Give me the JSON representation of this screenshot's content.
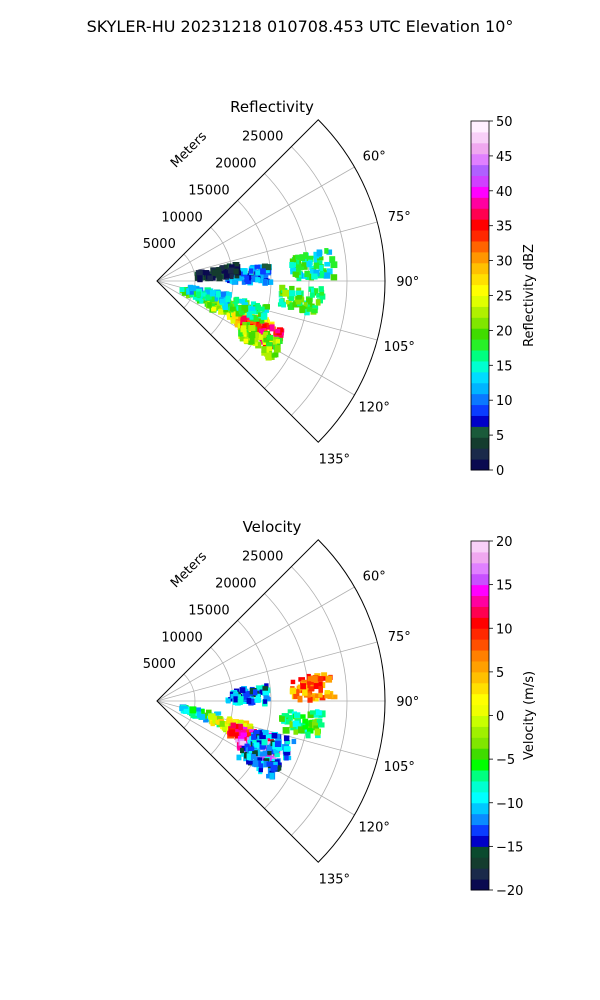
{
  "figure": {
    "suptitle": "SKYLER-HU  20231218  010708.453 UTC Elevation 10°"
  },
  "chart_data": [
    {
      "type": "polar-sector",
      "title": "Reflectivity",
      "range_label": "Meters",
      "theta_ticks": [
        "60°",
        "75°",
        "90°",
        "105°",
        "120°",
        "135°"
      ],
      "theta_values": [
        60,
        75,
        90,
        105,
        120,
        135
      ],
      "theta_range": [
        45,
        135
      ],
      "r_ticks": [
        "5000",
        "10000",
        "15000",
        "20000",
        "25000"
      ],
      "r_values": [
        5000,
        10000,
        15000,
        20000,
        25000
      ],
      "r_max": 30000,
      "grid": true,
      "colorbar": {
        "label": "Reflectivity dBZ",
        "range": [
          0,
          50
        ],
        "ticks": [
          "0",
          "5",
          "10",
          "15",
          "20",
          "25",
          "30",
          "35",
          "40",
          "45",
          "50"
        ],
        "tick_values": [
          0,
          5,
          10,
          15,
          20,
          25,
          30,
          35,
          40,
          45,
          50
        ],
        "colors": [
          "#0a0a50",
          "#1a2a4a",
          "#143c2e",
          "#1a5a3a",
          "#0000c8",
          "#0a3cff",
          "#0a78ff",
          "#00b4ff",
          "#00dcff",
          "#00ffd0",
          "#00ff80",
          "#28f028",
          "#40dc00",
          "#80e600",
          "#b0f000",
          "#e0ff00",
          "#ffff00",
          "#ffe000",
          "#ffc000",
          "#ff9600",
          "#ff6400",
          "#ff2800",
          "#ff0000",
          "#ff0050",
          "#ff00a0",
          "#ff00ff",
          "#d040ff",
          "#b060ff",
          "#e080ff",
          "#f0a8f0",
          "#f8d0f8",
          "#fff0ff"
        ]
      },
      "echoes": [
        {
          "azimuth": 110,
          "range": 6000,
          "value": 18
        },
        {
          "azimuth": 112,
          "range": 10000,
          "value": 22
        },
        {
          "azimuth": 114,
          "range": 13500,
          "value": 28
        },
        {
          "azimuth": 116,
          "range": 15000,
          "value": 35
        },
        {
          "azimuth": 120,
          "range": 15500,
          "value": 22
        },
        {
          "azimuth": 107,
          "range": 12000,
          "value": 17
        },
        {
          "azimuth": 104,
          "range": 7000,
          "value": 14
        },
        {
          "azimuth": 97,
          "range": 19000,
          "value": 18
        },
        {
          "azimuth": 84,
          "range": 20500,
          "value": 16
        },
        {
          "azimuth": 86,
          "range": 12000,
          "value": 10
        },
        {
          "azimuth": 82,
          "range": 8000,
          "value": 2
        }
      ]
    },
    {
      "type": "polar-sector",
      "title": "Velocity",
      "range_label": "Meters",
      "theta_ticks": [
        "60°",
        "75°",
        "90°",
        "105°",
        "120°",
        "135°"
      ],
      "theta_values": [
        60,
        75,
        90,
        105,
        120,
        135
      ],
      "theta_range": [
        45,
        135
      ],
      "r_ticks": [
        "5000",
        "10000",
        "15000",
        "20000",
        "25000"
      ],
      "r_values": [
        5000,
        10000,
        15000,
        20000,
        25000
      ],
      "r_max": 30000,
      "grid": true,
      "colorbar": {
        "label": "Velocity (m/s)",
        "range": [
          -20,
          20
        ],
        "ticks": [
          "−20",
          "−15",
          "−10",
          "−5",
          "0",
          "5",
          "10",
          "15",
          "20"
        ],
        "tick_values": [
          -20,
          -15,
          -10,
          -5,
          0,
          5,
          10,
          15,
          20
        ],
        "colors": [
          "#0a0a50",
          "#1a2a4a",
          "#143c2e",
          "#0a4a2e",
          "#0000c8",
          "#0a3cff",
          "#0a8cff",
          "#00c8ff",
          "#00ffff",
          "#00ffd0",
          "#00ff80",
          "#00ff00",
          "#40dc00",
          "#80e600",
          "#a0f000",
          "#c8ff00",
          "#f0ff00",
          "#ffff00",
          "#ffe000",
          "#ffc000",
          "#ffa000",
          "#ff8000",
          "#ff5000",
          "#ff2800",
          "#ff0000",
          "#ff0050",
          "#ff00a0",
          "#ff00ff",
          "#c850ff",
          "#e080ff",
          "#f0a8f0",
          "#f8d0f8"
        ]
      },
      "echoes": [
        {
          "azimuth": 106,
          "range": 6000,
          "value": -8
        },
        {
          "azimuth": 108,
          "range": 10000,
          "value": 1
        },
        {
          "azimuth": 111,
          "range": 13000,
          "value": 12
        },
        {
          "azimuth": 115,
          "range": 14500,
          "value": 16
        },
        {
          "azimuth": 110,
          "range": 16000,
          "value": -12
        },
        {
          "azimuth": 120,
          "range": 15500,
          "value": -13
        },
        {
          "azimuth": 98,
          "range": 19000,
          "value": -6
        },
        {
          "azimuth": 85,
          "range": 20500,
          "value": 7
        },
        {
          "azimuth": 86,
          "range": 12000,
          "value": -12
        }
      ]
    }
  ]
}
